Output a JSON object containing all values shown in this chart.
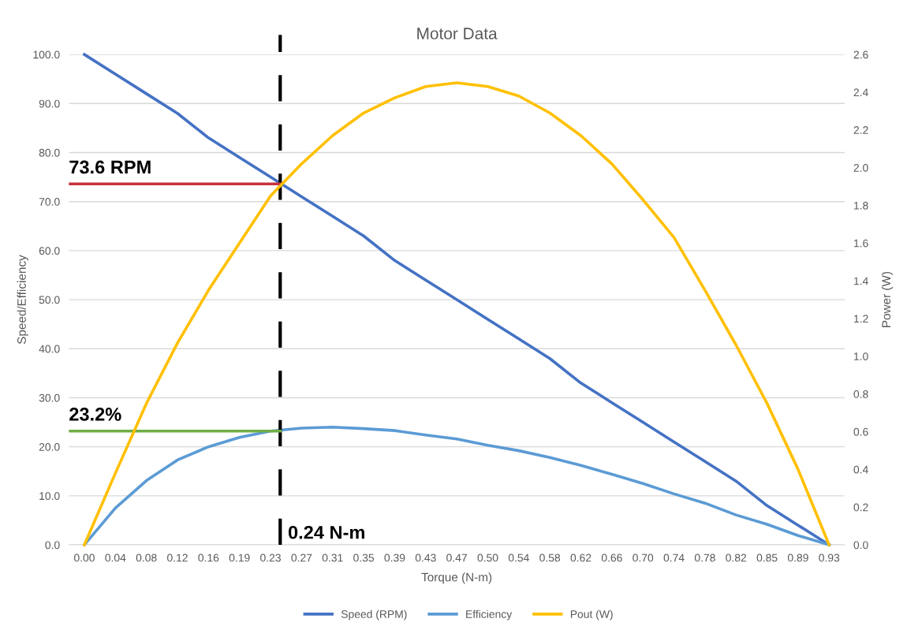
{
  "chart_data": {
    "type": "line",
    "title": "Motor Data",
    "xlabel": "Torque (N-m)",
    "ylabel": "Speed/Efficiency",
    "y2label": "Power (W)",
    "x": [
      0,
      0.03882,
      0.07764,
      0.11646,
      0.15528,
      0.1941,
      0.23292,
      0.27174,
      0.31056,
      0.34938,
      0.3882,
      0.42702,
      0.46584,
      0.50466,
      0.54348,
      0.5823,
      0.62112,
      0.65994,
      0.69876,
      0.73758,
      0.7764,
      0.81522,
      0.85404,
      0.89286,
      0.93168
    ],
    "series": [
      {
        "name": "Speed (RPM)",
        "color": "#4472c4",
        "values": [
          100,
          96,
          92,
          88,
          83,
          79,
          75,
          71,
          67,
          63,
          58,
          54,
          50,
          46,
          42,
          38,
          33,
          29,
          25,
          21,
          17,
          13,
          8,
          4,
          0
        ]
      },
      {
        "name": "Efficiency",
        "color": "#5b9bd5",
        "values": [
          0,
          7.5,
          13.1,
          17.3,
          20.0,
          21.9,
          23.2,
          23.8,
          24.0,
          23.7,
          23.3,
          22.4,
          21.6,
          20.3,
          19.2,
          17.8,
          16.2,
          14.4,
          12.5,
          10.4,
          8.5,
          6.1,
          4.2,
          1.9,
          0
        ]
      },
      {
        "name": "Pout (W)",
        "color": "#ffc000",
        "axis": "y2",
        "values": [
          0,
          0.38,
          0.75,
          1.07,
          1.35,
          1.6,
          1.85,
          2.02,
          2.17,
          2.29,
          2.37,
          2.43,
          2.45,
          2.43,
          2.38,
          2.29,
          2.17,
          2.02,
          1.83,
          1.63,
          1.35,
          1.06,
          0.75,
          0.4,
          0
        ]
      }
    ],
    "ref_lines": [
      {
        "axis": "x",
        "value": 0.245,
        "label": "0.24 N-m",
        "color": "#000000",
        "line_style": "dashed"
      },
      {
        "axis": "y",
        "value": 73.6,
        "label": "73.6 RPM",
        "color": "#c8323c",
        "line_style": "solid"
      },
      {
        "axis": "y",
        "value": 23.2,
        "label": "23.2%",
        "color": "#70ad47",
        "line_style": "solid"
      }
    ],
    "xlim": [
      -0.0194,
      0.951
    ],
    "xticks": [
      {
        "value": 0,
        "label": "0.00"
      },
      {
        "value": 0.03882,
        "label": "0.04"
      },
      {
        "value": 0.07764,
        "label": "0.08"
      },
      {
        "value": 0.11646,
        "label": "0.12"
      },
      {
        "value": 0.15528,
        "label": "0.16"
      },
      {
        "value": 0.1941,
        "label": "0.19"
      },
      {
        "value": 0.23292,
        "label": "0.23"
      },
      {
        "value": 0.27174,
        "label": "0.27"
      },
      {
        "value": 0.31056,
        "label": "0.31"
      },
      {
        "value": 0.34938,
        "label": "0.35"
      },
      {
        "value": 0.3882,
        "label": "0.39"
      },
      {
        "value": 0.42702,
        "label": "0.43"
      },
      {
        "value": 0.46584,
        "label": "0.47"
      },
      {
        "value": 0.50466,
        "label": "0.50"
      },
      {
        "value": 0.54348,
        "label": "0.54"
      },
      {
        "value": 0.5823,
        "label": "0.58"
      },
      {
        "value": 0.62112,
        "label": "0.62"
      },
      {
        "value": 0.65994,
        "label": "0.66"
      },
      {
        "value": 0.69876,
        "label": "0.70"
      },
      {
        "value": 0.73758,
        "label": "0.74"
      },
      {
        "value": 0.7764,
        "label": "0.78"
      },
      {
        "value": 0.81522,
        "label": "0.82"
      },
      {
        "value": 0.85404,
        "label": "0.85"
      },
      {
        "value": 0.89286,
        "label": "0.89"
      },
      {
        "value": 0.93168,
        "label": "0.93"
      }
    ],
    "ylim": [
      0,
      100
    ],
    "yticks": [
      {
        "value": 0,
        "label": "0.0"
      },
      {
        "value": 10,
        "label": "10.0"
      },
      {
        "value": 20,
        "label": "20.0"
      },
      {
        "value": 30,
        "label": "30.0"
      },
      {
        "value": 40,
        "label": "40.0"
      },
      {
        "value": 50,
        "label": "50.0"
      },
      {
        "value": 60,
        "label": "60.0"
      },
      {
        "value": 70,
        "label": "70.0"
      },
      {
        "value": 80,
        "label": "80.0"
      },
      {
        "value": 90,
        "label": "90.0"
      },
      {
        "value": 100,
        "label": "100.0"
      }
    ],
    "y2lim": [
      0,
      2.6
    ],
    "y2ticks": [
      {
        "value": 0,
        "label": "0.0"
      },
      {
        "value": 0.2,
        "label": "0.2"
      },
      {
        "value": 0.4,
        "label": "0.4"
      },
      {
        "value": 0.6,
        "label": "0.6"
      },
      {
        "value": 0.8,
        "label": "0.8"
      },
      {
        "value": 1.0,
        "label": "1.0"
      },
      {
        "value": 1.2,
        "label": "1.2"
      },
      {
        "value": 1.4,
        "label": "1.4"
      },
      {
        "value": 1.6,
        "label": "1.6"
      },
      {
        "value": 1.8,
        "label": "1.8"
      },
      {
        "value": 2.0,
        "label": "2.0"
      },
      {
        "value": 2.2,
        "label": "2.2"
      },
      {
        "value": 2.4,
        "label": "2.4"
      },
      {
        "value": 2.6,
        "label": "2.6"
      }
    ],
    "grid": "y",
    "legend": "bottom",
    "marker": "none",
    "line_style": "solid"
  }
}
